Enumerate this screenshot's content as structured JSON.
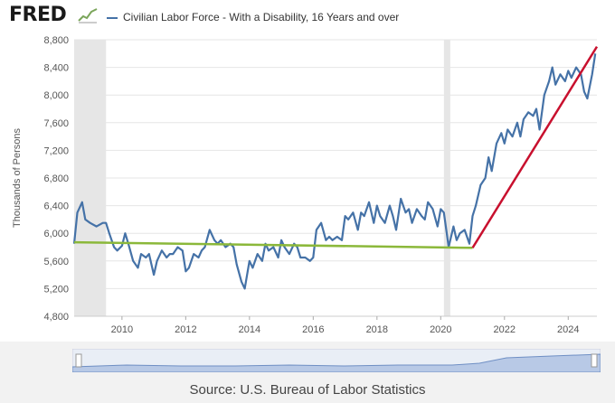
{
  "header": {
    "logo_text": "FRED",
    "logo_icon": "line-chart-icon",
    "legend_label": "Civilian Labor Force - With a Disability, 16 Years and over"
  },
  "source_text": "Source: U.S. Bureau of Labor Statistics",
  "colors": {
    "series": "#4572a7",
    "red_trend": "#c8102e",
    "green_trend": "#8bb83a",
    "recession": "#e6e6e6",
    "grid": "#e6e6e6"
  },
  "chart_data": {
    "type": "line",
    "title": "Civilian Labor Force - With a Disability, 16 Years and over",
    "xlabel": "",
    "ylabel": "Thousands of Persons",
    "xlim": [
      2008.5,
      2024.9
    ],
    "ylim": [
      4800,
      8800
    ],
    "yticks": [
      4800,
      5200,
      5600,
      6000,
      6400,
      6800,
      7200,
      7600,
      8000,
      8400,
      8800
    ],
    "yticklabels": [
      "4,800",
      "5,200",
      "5,600",
      "6,000",
      "6,400",
      "6,800",
      "7,200",
      "7,600",
      "8,000",
      "8,400",
      "8,800"
    ],
    "xticks": [
      2010,
      2012,
      2014,
      2016,
      2018,
      2020,
      2022,
      2024
    ],
    "xticklabels": [
      "2010",
      "2012",
      "2014",
      "2016",
      "2018",
      "2020",
      "2022",
      "2024"
    ],
    "recessions": [
      [
        2008.5,
        2009.5
      ],
      [
        2020.1,
        2020.3
      ]
    ],
    "series": [
      {
        "x": [
          2008.5,
          2008.6,
          2008.75,
          2008.85,
          2009.0,
          2009.2,
          2009.4,
          2009.5,
          2009.6,
          2009.75,
          2009.85,
          2010.0,
          2010.1,
          2010.2,
          2010.35,
          2010.5,
          2010.6,
          2010.75,
          2010.85,
          2011.0,
          2011.1,
          2011.25,
          2011.4,
          2011.5,
          2011.6,
          2011.75,
          2011.9,
          2012.0,
          2012.1,
          2012.25,
          2012.4,
          2012.5,
          2012.6,
          2012.75,
          2012.9,
          2013.0,
          2013.1,
          2013.25,
          2013.4,
          2013.5,
          2013.6,
          2013.75,
          2013.85,
          2014.0,
          2014.1,
          2014.25,
          2014.4,
          2014.5,
          2014.6,
          2014.75,
          2014.9,
          2015.0,
          2015.1,
          2015.25,
          2015.4,
          2015.5,
          2015.6,
          2015.75,
          2015.9,
          2016.0,
          2016.1,
          2016.25,
          2016.4,
          2016.5,
          2016.6,
          2016.75,
          2016.9,
          2017.0,
          2017.1,
          2017.25,
          2017.4,
          2017.5,
          2017.6,
          2017.75,
          2017.9,
          2018.0,
          2018.1,
          2018.25,
          2018.4,
          2018.5,
          2018.6,
          2018.75,
          2018.9,
          2019.0,
          2019.1,
          2019.25,
          2019.4,
          2019.5,
          2019.6,
          2019.75,
          2019.9,
          2020.0,
          2020.1,
          2020.25,
          2020.4,
          2020.5,
          2020.6,
          2020.75,
          2020.9,
          2021.0,
          2021.1,
          2021.25,
          2021.4,
          2021.5,
          2021.6,
          2021.75,
          2021.9,
          2022.0,
          2022.1,
          2022.25,
          2022.4,
          2022.5,
          2022.6,
          2022.75,
          2022.9,
          2023.0,
          2023.1,
          2023.25,
          2023.4,
          2023.5,
          2023.6,
          2023.75,
          2023.9,
          2024.0,
          2024.1,
          2024.25,
          2024.4,
          2024.5,
          2024.6,
          2024.75,
          2024.85
        ],
        "values": [
          5850,
          6300,
          6450,
          6200,
          6150,
          6100,
          6150,
          6150,
          6000,
          5800,
          5750,
          5820,
          6000,
          5850,
          5600,
          5500,
          5700,
          5650,
          5700,
          5400,
          5600,
          5750,
          5650,
          5700,
          5700,
          5800,
          5750,
          5450,
          5500,
          5700,
          5650,
          5750,
          5800,
          6050,
          5900,
          5850,
          5900,
          5800,
          5850,
          5800,
          5550,
          5300,
          5200,
          5600,
          5500,
          5700,
          5600,
          5850,
          5750,
          5800,
          5650,
          5900,
          5800,
          5700,
          5850,
          5800,
          5650,
          5650,
          5600,
          5650,
          6050,
          6150,
          5900,
          5950,
          5900,
          5950,
          5900,
          6250,
          6200,
          6300,
          6050,
          6300,
          6250,
          6450,
          6150,
          6400,
          6250,
          6150,
          6400,
          6250,
          6050,
          6500,
          6300,
          6350,
          6150,
          6350,
          6250,
          6200,
          6450,
          6350,
          6100,
          6350,
          6300,
          5800,
          6100,
          5900,
          6000,
          6050,
          5850,
          6250,
          6400,
          6700,
          6800,
          7100,
          6900,
          7300,
          7450,
          7300,
          7500,
          7400,
          7600,
          7400,
          7650,
          7750,
          7700,
          7800,
          7500,
          8000,
          8200,
          8400,
          8150,
          8300,
          8200,
          8350,
          8250,
          8400,
          8300,
          8050,
          7950,
          8300,
          8600
        ]
      }
    ],
    "trend_lines": [
      {
        "name": "",
        "color": "#8bb83a",
        "x": [
          2008.5,
          2021.0
        ],
        "values": [
          5870,
          5790
        ]
      },
      {
        "name": "",
        "color": "#c8102e",
        "x": [
          2021.0,
          2024.9
        ],
        "values": [
          5790,
          8700
        ]
      }
    ]
  }
}
